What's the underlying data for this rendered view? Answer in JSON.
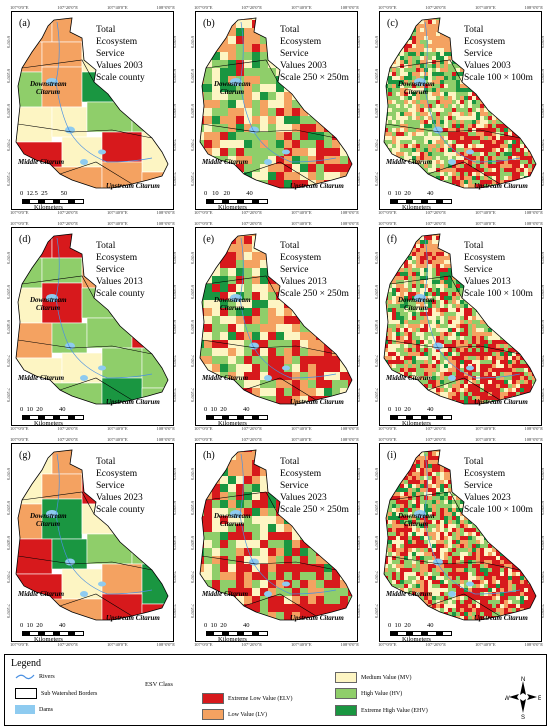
{
  "panels": [
    {
      "id": "a",
      "label": "(a)",
      "title": [
        "Total",
        "Ecosystem",
        "Service",
        "Values 2003",
        "Scale county"
      ],
      "scale_nums": "0  12.5  25        50",
      "scale_unit": "Kilometers",
      "style": "county",
      "year": 2003
    },
    {
      "id": "b",
      "label": "(b)",
      "title": [
        "Total",
        "Ecosystem",
        "Service",
        "Values 2003",
        "Scale 250 × 250m"
      ],
      "scale_nums": "0   10   20          40",
      "scale_unit": "Kilometers",
      "style": "250",
      "year": 2003
    },
    {
      "id": "c",
      "label": "(c)",
      "title": [
        "Total",
        "Ecosystem",
        "Service",
        "Values 2003",
        "Scale 100 × 100m"
      ],
      "scale_nums": "0  10  20          40",
      "scale_unit": "Kilometers",
      "style": "100",
      "year": 2003
    },
    {
      "id": "d",
      "label": "(d)",
      "title": [
        "Total",
        "Ecosystem",
        "Service",
        "Values 2013",
        "Scale county"
      ],
      "scale_nums": "0  10  20          40",
      "scale_unit": "Kilometers",
      "style": "county",
      "year": 2013
    },
    {
      "id": "e",
      "label": "(e)",
      "title": [
        "Total",
        "Ecosystem",
        "Service",
        "Values 2013",
        "Scale 250 × 250m"
      ],
      "scale_nums": "0  10  20          40",
      "scale_unit": "Kilometers",
      "style": "250",
      "year": 2013
    },
    {
      "id": "f",
      "label": "(f)",
      "title": [
        "Total",
        "Ecosystem",
        "Service",
        "Values 2013",
        "Scale 100 × 100m"
      ],
      "scale_nums": "0  10  20          40",
      "scale_unit": "Kilometers",
      "style": "100",
      "year": 2013
    },
    {
      "id": "g",
      "label": "(g)",
      "title": [
        "Total",
        "Ecosystem",
        "Service",
        "Values 2023",
        "Scale county"
      ],
      "scale_nums": "0  10  20          40",
      "scale_unit": "Kilometers",
      "style": "county",
      "year": 2023
    },
    {
      "id": "h",
      "label": "(h)",
      "title": [
        "Total",
        "Ecosystem",
        "Service",
        "Values 2023",
        "Scale 250 × 250m"
      ],
      "scale_nums": "0  10  20          40",
      "scale_unit": "Kilometers",
      "style": "250",
      "year": 2023
    },
    {
      "id": "i",
      "label": "(i)",
      "title": [
        "Total",
        "Ecosystem",
        "Service",
        "Values 2023",
        "Scale 100 × 100m"
      ],
      "scale_nums": "0  10  20          40",
      "scale_unit": "Kilometers",
      "style": "100",
      "year": 2023
    }
  ],
  "regions": {
    "downstream": [
      "Downstream",
      "Citarum"
    ],
    "middle": "Middle Citarum",
    "upstream": "Upstream Citarum"
  },
  "coords": {
    "bottom": [
      "107°0'0\"E",
      "107°20'0\"E",
      "107°40'0\"E",
      "108°0'0\"E"
    ],
    "top": [
      "107°0'0\"E",
      "107°20'0\"E",
      "107°40'0\"E",
      "108°0'0\"E"
    ],
    "left": [
      "6°0'0\"S",
      "6°20'0\"S",
      "6°40'0\"S",
      "7°0'0\"S",
      "7°20'0\"S"
    ],
    "right": [
      "6°0'0\"S",
      "6°20'0\"S",
      "6°40'0\"S",
      "7°0'0\"S",
      "7°20'0\"S"
    ]
  },
  "legend": {
    "title": "Legend",
    "rivers": "Rivers",
    "subwatershed": "Sub Watershed Borders",
    "dams": "Dams",
    "esv_class": "ESV Class",
    "classes": [
      {
        "key": "elv",
        "label": "Extreme Low Value (ELV)",
        "color": "#d7191c"
      },
      {
        "key": "lv",
        "label": "Low Value (LV)",
        "color": "#f4a261"
      },
      {
        "key": "mv",
        "label": "Medium Value (MV)",
        "color": "#fdf5c3"
      },
      {
        "key": "hv",
        "label": "High Value (HV)",
        "color": "#8fce6a"
      },
      {
        "key": "ehv",
        "label": "Extreme High Value (EHV)",
        "color": "#1a9641"
      }
    ],
    "river_color": "#4a90e2",
    "dam_color": "#8ecbf0",
    "north": {
      "n": "N",
      "e": "E",
      "s": "S",
      "w": "W"
    }
  }
}
